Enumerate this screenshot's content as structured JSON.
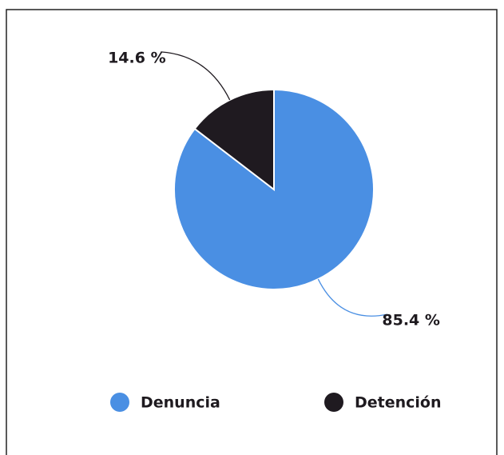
{
  "chart_data": {
    "type": "pie",
    "categories": [
      "Denuncia",
      "Detención"
    ],
    "values": [
      85.4,
      14.6
    ],
    "value_labels": [
      "85.4 %",
      "14.6 %"
    ],
    "colors": [
      "#4a8fe3",
      "#1f1a20"
    ],
    "legend": "bottom"
  }
}
